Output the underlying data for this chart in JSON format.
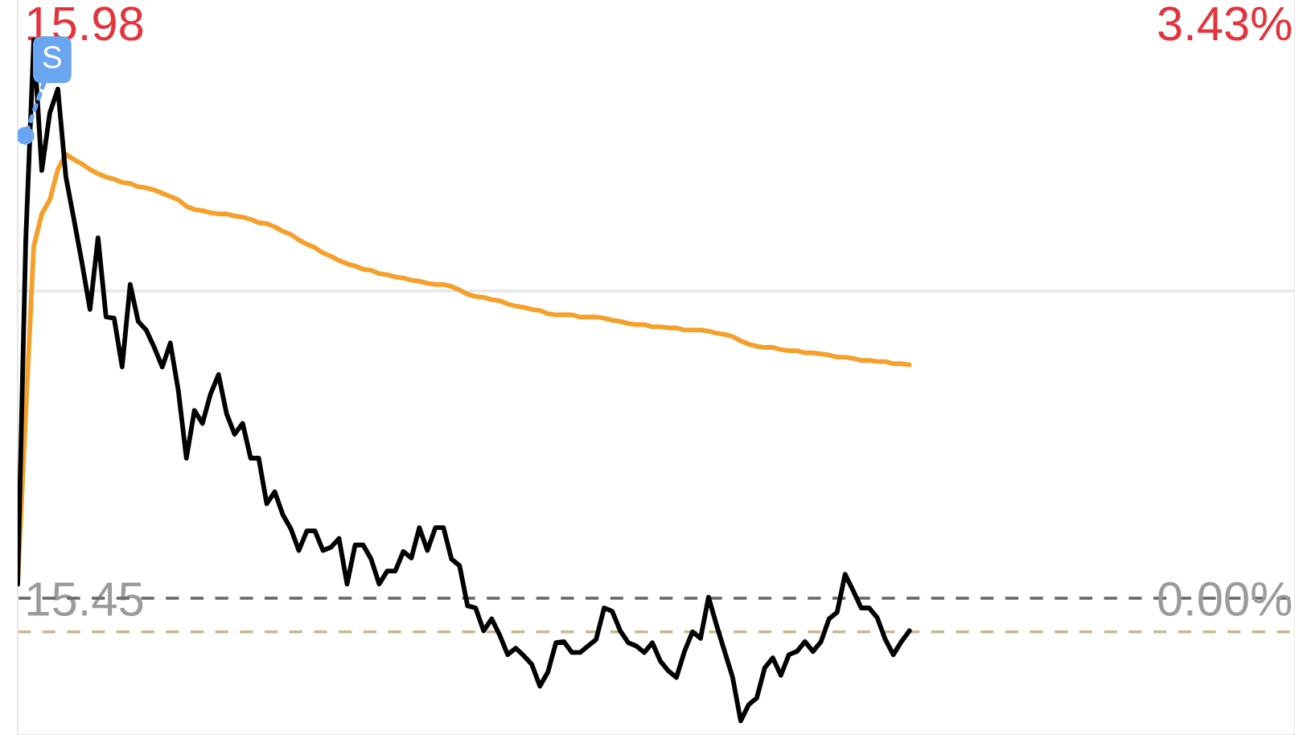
{
  "chart_data": {
    "type": "line",
    "categories": [
      null,
      null,
      null,
      null,
      null,
      null,
      null,
      null,
      null,
      null,
      null,
      null,
      null,
      null,
      null,
      null,
      null,
      null,
      null,
      null,
      null,
      null,
      null,
      null,
      null,
      null,
      null,
      null,
      null,
      null,
      null,
      null,
      null,
      null,
      null,
      null,
      null,
      null,
      null,
      null,
      null,
      null,
      null,
      null,
      null,
      null,
      null,
      null,
      null,
      null,
      null,
      null,
      null,
      null,
      null,
      null,
      null,
      null,
      null,
      null,
      null,
      null,
      null,
      null,
      null,
      null,
      null,
      null,
      null,
      null,
      null,
      null,
      null,
      null,
      null,
      null,
      null,
      null,
      null,
      null,
      null,
      null,
      null,
      null,
      null,
      null,
      null,
      null,
      null,
      null,
      null,
      null,
      null,
      null,
      null,
      null,
      null,
      null,
      null,
      null,
      null,
      null,
      null,
      null,
      null,
      null,
      null,
      null,
      null,
      null,
      null,
      null,
      null,
      null,
      null,
      null,
      null,
      null,
      null,
      null,
      null,
      null,
      null,
      null,
      null,
      null,
      null,
      null,
      null,
      null,
      null,
      null,
      null,
      null,
      null,
      null,
      null,
      null,
      null,
      null,
      null,
      null,
      null,
      null,
      null,
      null,
      null,
      null,
      null,
      null,
      null,
      null,
      null,
      null,
      null,
      null,
      null,
      null,
      null,
      null
    ],
    "series": [
      {
        "color": "#000000",
        "values": [
          15.463,
          15.779,
          15.964,
          15.844,
          15.897,
          15.919,
          15.838,
          15.799,
          15.759,
          15.716,
          15.782,
          15.709,
          15.708,
          15.663,
          15.739,
          15.705,
          15.697,
          15.681,
          15.663,
          15.685,
          15.641,
          15.579,
          15.623,
          15.611,
          15.638,
          15.656,
          15.62,
          15.601,
          15.611,
          15.579,
          15.579,
          15.537,
          15.548,
          15.527,
          15.514,
          15.494,
          15.512,
          15.512,
          15.494,
          15.497,
          15.505,
          15.463,
          15.499,
          15.499,
          15.486,
          15.463,
          15.475,
          15.475,
          15.493,
          15.487,
          15.515,
          15.494,
          15.515,
          15.515,
          15.486,
          15.48,
          15.443,
          15.441,
          15.42,
          15.431,
          15.416,
          15.398,
          15.404,
          15.397,
          15.389,
          15.369,
          15.382,
          15.409,
          15.41,
          15.4,
          15.4,
          15.406,
          15.412,
          15.441,
          15.438,
          15.42,
          15.409,
          15.406,
          15.4,
          15.409,
          15.392,
          15.383,
          15.377,
          15.401,
          15.419,
          15.413,
          15.451,
          15.425,
          15.401,
          15.377,
          15.337,
          15.352,
          15.358,
          15.386,
          15.395,
          15.379,
          15.398,
          15.401,
          15.41,
          15.401,
          15.41,
          15.431,
          15.437,
          15.472,
          15.457,
          15.441,
          15.441,
          15.432,
          15.412,
          15.398,
          15.41,
          15.42,
          null,
          null,
          null,
          null,
          null,
          null,
          null,
          null,
          null,
          null,
          null,
          null,
          null,
          null,
          null,
          null,
          null,
          null,
          null,
          null,
          null,
          null,
          null,
          null,
          null,
          null,
          null,
          null,
          null,
          null,
          null,
          null,
          null,
          null,
          null,
          null,
          null,
          null,
          null,
          null,
          null,
          null,
          null,
          null,
          null,
          null,
          null,
          null
        ]
      },
      {
        "color": "#f5a02a",
        "values": [
          15.463,
          15.62,
          15.774,
          15.804,
          15.817,
          15.845,
          15.859,
          15.854,
          15.85,
          15.845,
          15.841,
          15.838,
          15.836,
          15.833,
          15.832,
          15.829,
          15.828,
          15.826,
          15.823,
          15.82,
          15.817,
          15.811,
          15.808,
          15.807,
          15.805,
          15.804,
          15.804,
          15.802,
          15.801,
          15.799,
          15.796,
          15.795,
          15.792,
          15.788,
          15.785,
          15.78,
          15.776,
          15.773,
          15.768,
          15.765,
          15.761,
          15.758,
          15.756,
          15.753,
          15.752,
          15.749,
          15.748,
          15.746,
          15.745,
          15.743,
          15.742,
          15.74,
          15.739,
          15.739,
          15.737,
          15.734,
          15.73,
          15.728,
          15.727,
          15.725,
          15.724,
          15.721,
          15.719,
          15.718,
          15.716,
          15.715,
          15.712,
          15.711,
          15.711,
          15.711,
          15.709,
          15.709,
          15.709,
          15.708,
          15.706,
          15.705,
          15.703,
          15.702,
          15.702,
          15.7,
          15.7,
          15.699,
          15.699,
          15.697,
          15.697,
          15.697,
          15.696,
          15.694,
          15.693,
          15.691,
          15.687,
          15.684,
          15.682,
          15.681,
          15.681,
          15.679,
          15.678,
          15.678,
          15.676,
          15.676,
          15.675,
          15.674,
          15.672,
          15.672,
          15.671,
          15.669,
          15.669,
          15.668,
          15.668,
          15.666,
          15.666,
          15.665,
          null,
          null,
          null,
          null,
          null,
          null,
          null,
          null,
          null,
          null,
          null,
          null,
          null,
          null,
          null,
          null,
          null,
          null,
          null,
          null,
          null,
          null,
          null,
          null,
          null,
          null,
          null,
          null,
          null,
          null,
          null,
          null,
          null,
          null,
          null,
          null,
          null,
          null,
          null,
          null,
          null,
          null,
          null,
          null,
          null,
          null,
          null,
          null
        ]
      }
    ],
    "ylim": [
      15.324,
      16.001
    ],
    "yticks": [
      15.98,
      15.45
    ],
    "y2lim": [
      -0.816,
      3.566
    ],
    "y2ticks": [
      {
        "value": 3.43,
        "label": "3.43%"
      },
      {
        "value": 0,
        "label": "0.00%"
      }
    ],
    "ref_lines": [
      {
        "axis": "y",
        "value": 15.45,
        "color": "#6e6e6e",
        "line_style": "dashed"
      },
      {
        "axis": "y",
        "value": 15.419,
        "color": "#c9b790",
        "line_style": "dashed"
      },
      {
        "axis": "y",
        "value": 15.733,
        "color": "#e8e8e8",
        "line_style": "solid"
      }
    ],
    "annotations": [
      {
        "text": "S",
        "y": 15.876
      }
    ],
    "tick_labels": "y"
  }
}
